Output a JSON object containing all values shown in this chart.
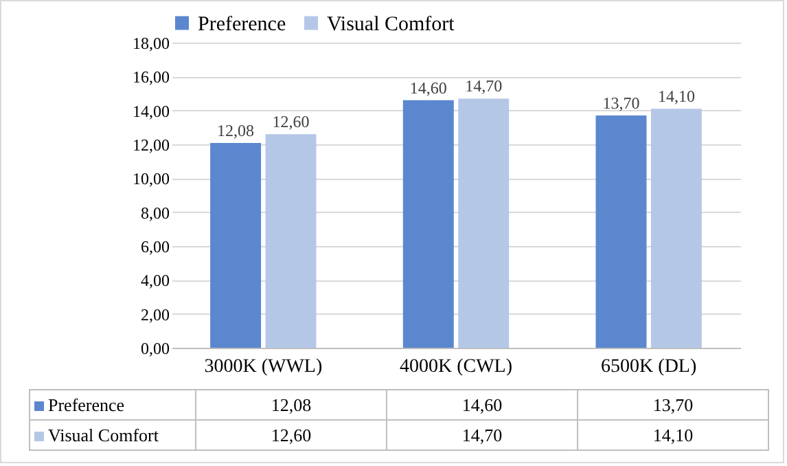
{
  "chart_data": {
    "type": "bar",
    "categories": [
      "3000K (WWL)",
      "4000K (CWL)",
      "6500K (DL)"
    ],
    "series": [
      {
        "name": "Preference",
        "color": "#5b87cf",
        "values": [
          12.08,
          14.6,
          13.7
        ],
        "value_labels": [
          "12,08",
          "14,60",
          "13,70"
        ]
      },
      {
        "name": "Visual Comfort",
        "color": "#b4c7e7",
        "values": [
          12.6,
          14.7,
          14.1
        ],
        "value_labels": [
          "12,60",
          "14,70",
          "14,10"
        ]
      }
    ],
    "ylim": [
      0,
      18
    ],
    "yticks": [
      {
        "value": 0,
        "label": "0,00"
      },
      {
        "value": 2,
        "label": "2,00"
      },
      {
        "value": 4,
        "label": "4,00"
      },
      {
        "value": 6,
        "label": "6,00"
      },
      {
        "value": 8,
        "label": "8,00"
      },
      {
        "value": 10,
        "label": "10,00"
      },
      {
        "value": 12,
        "label": "12,00"
      },
      {
        "value": 14,
        "label": "14,00"
      },
      {
        "value": 16,
        "label": "16,00"
      },
      {
        "value": 18,
        "label": "18,00"
      }
    ],
    "grid": "y",
    "legend": "top"
  }
}
